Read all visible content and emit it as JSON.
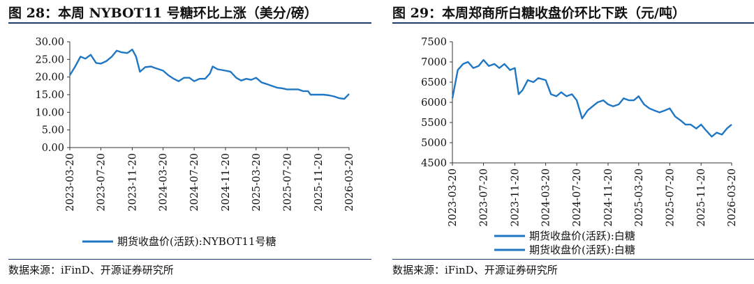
{
  "panels": [
    {
      "title": "图 28：本周 NYBOT11 号糖环比上涨（美分/磅）",
      "source": "数据来源：iFinD、开源证券研究所"
    },
    {
      "title": "图 29：本周郑商所白糖收盘价环比下跌（元/吨）",
      "source": "数据来源：iFinD、开源证券研究所"
    }
  ],
  "chart_data": [
    {
      "type": "line",
      "title": "图 28：本周 NYBOT11 号糖环比上涨（美分/磅）",
      "xlabel": "",
      "ylabel": "",
      "ylim": [
        0,
        30
      ],
      "y_ticks": [
        "0.00",
        "5.00",
        "10.00",
        "15.00",
        "20.00",
        "25.00",
        "30.00"
      ],
      "x_ticks": [
        "2023-03-20",
        "2023-07-20",
        "2023-11-20",
        "2024-03-20",
        "2024-07-20",
        "2024-11-20",
        "2025-03-20",
        "2025-07-20",
        "2025-11-20",
        "2026-03-20"
      ],
      "legend": "bottom",
      "grid": false,
      "color": "#1f77c4",
      "series": [
        {
          "name": "期货收盘价(活跃):NYBOT11号糖",
          "x": [
            "2023-03-20",
            "2023-04-10",
            "2023-05-01",
            "2023-05-20",
            "2023-06-10",
            "2023-07-01",
            "2023-07-20",
            "2023-08-10",
            "2023-09-01",
            "2023-09-20",
            "2023-10-10",
            "2023-11-01",
            "2023-11-20",
            "2023-12-05",
            "2023-12-20",
            "2024-01-10",
            "2024-02-01",
            "2024-02-20",
            "2024-03-20",
            "2024-04-10",
            "2024-05-01",
            "2024-05-20",
            "2024-06-10",
            "2024-07-01",
            "2024-07-20",
            "2024-08-10",
            "2024-09-01",
            "2024-09-20",
            "2024-10-01",
            "2024-10-20",
            "2024-11-20",
            "2024-12-10",
            "2025-01-01",
            "2025-01-20",
            "2025-02-10",
            "2025-03-01",
            "2025-03-20",
            "2025-04-10",
            "2025-05-01",
            "2025-05-20",
            "2025-06-10",
            "2025-07-01",
            "2025-07-20",
            "2025-08-10",
            "2025-09-01",
            "2025-09-20",
            "2025-10-10",
            "2025-10-20",
            "2025-11-20",
            "2025-12-10",
            "2026-01-01",
            "2026-01-20",
            "2026-02-10",
            "2026-03-01",
            "2026-03-20"
          ],
          "values": [
            20.5,
            23.0,
            25.8,
            25.2,
            26.3,
            24.0,
            23.8,
            24.5,
            25.8,
            27.5,
            27.0,
            26.8,
            27.8,
            25.8,
            21.5,
            22.8,
            23.0,
            22.5,
            21.8,
            20.5,
            19.5,
            18.8,
            19.8,
            19.8,
            18.8,
            19.5,
            19.5,
            21.0,
            23.0,
            22.2,
            21.8,
            21.5,
            19.8,
            19.0,
            19.5,
            19.2,
            19.8,
            18.5,
            18.0,
            17.5,
            17.0,
            16.8,
            16.5,
            16.5,
            16.5,
            16.0,
            16.0,
            15.0,
            15.0,
            15.0,
            14.8,
            14.5,
            14.0,
            13.8,
            15.2
          ]
        }
      ]
    },
    {
      "type": "line",
      "title": "图 29：本周郑商所白糖收盘价环比下跌（元/吨）",
      "xlabel": "",
      "ylabel": "",
      "ylim": [
        4500,
        7500
      ],
      "y_ticks": [
        "4500",
        "5000",
        "5500",
        "6000",
        "6500",
        "7000",
        "7500"
      ],
      "x_ticks": [
        "2023-03-20",
        "2023-07-20",
        "2023-11-20",
        "2024-03-20",
        "2024-07-20",
        "2024-11-20",
        "2025-03-20",
        "2025-07-20",
        "2025-11-20",
        "2026-03-20"
      ],
      "legend": "bottom",
      "grid": false,
      "color": "#1f77c4",
      "series": [
        {
          "name": "期货收盘价(活跃):白糖",
          "x": [
            "2023-03-20",
            "2023-04-10",
            "2023-05-01",
            "2023-05-20",
            "2023-06-10",
            "2023-07-01",
            "2023-07-20",
            "2023-08-10",
            "2023-09-01",
            "2023-09-20",
            "2023-10-10",
            "2023-11-01",
            "2023-11-20",
            "2023-12-05",
            "2023-12-20",
            "2024-01-10",
            "2024-02-01",
            "2024-02-20",
            "2024-03-20",
            "2024-04-10",
            "2024-05-01",
            "2024-05-20",
            "2024-06-10",
            "2024-07-01",
            "2024-07-20",
            "2024-08-10",
            "2024-09-01",
            "2024-09-20",
            "2024-10-10",
            "2024-11-01",
            "2024-11-20",
            "2024-12-10",
            "2025-01-01",
            "2025-01-20",
            "2025-02-10",
            "2025-03-01",
            "2025-03-20",
            "2025-04-10",
            "2025-05-01",
            "2025-05-20",
            "2025-06-10",
            "2025-07-01",
            "2025-07-20",
            "2025-08-10",
            "2025-09-01",
            "2025-09-20",
            "2025-10-10",
            "2025-11-01",
            "2025-11-20",
            "2025-12-10",
            "2026-01-01",
            "2026-01-20",
            "2026-02-10",
            "2026-03-01",
            "2026-03-20"
          ],
          "values": [
            6100,
            6800,
            6950,
            7000,
            6850,
            6900,
            7050,
            6900,
            6950,
            6850,
            6950,
            6800,
            6850,
            6200,
            6300,
            6550,
            6500,
            6600,
            6550,
            6200,
            6150,
            6250,
            6150,
            6200,
            6050,
            5600,
            5800,
            5900,
            6000,
            6050,
            5950,
            5900,
            5950,
            6100,
            6050,
            6050,
            6150,
            5950,
            5850,
            5800,
            5750,
            5800,
            5850,
            5650,
            5550,
            5450,
            5450,
            5350,
            5450,
            5300,
            5150,
            5250,
            5200,
            5350,
            5450
          ]
        }
      ]
    }
  ]
}
